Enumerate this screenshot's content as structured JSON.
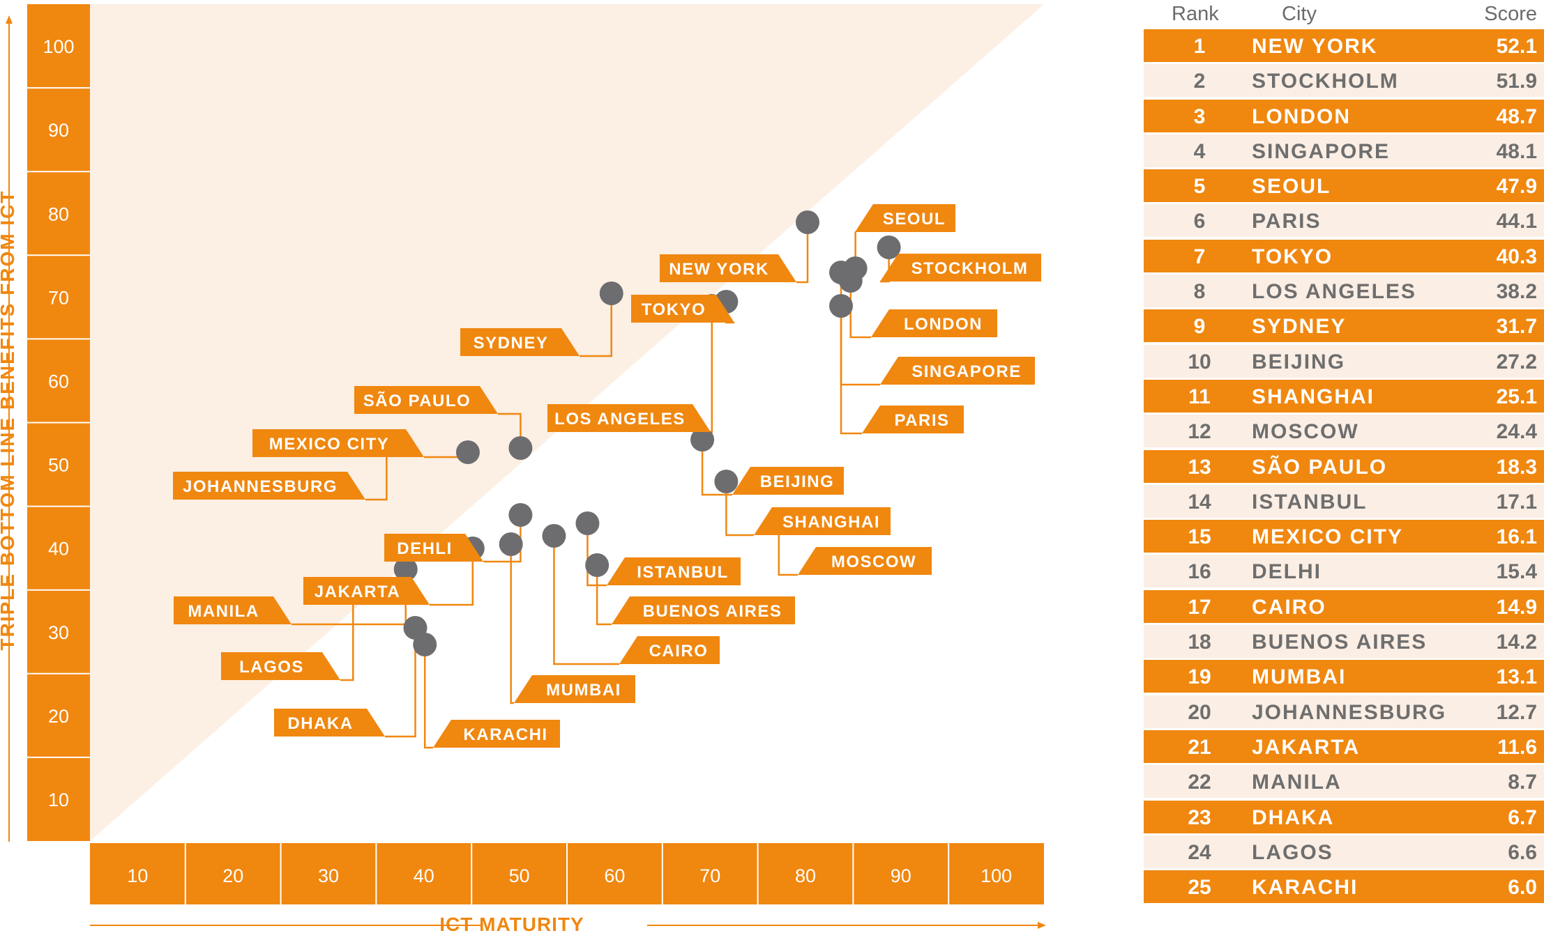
{
  "chart_data": {
    "type": "scatter",
    "xlabel": "ICT MATURITY",
    "ylabel": "TRIPLE BOTTOM LINE BENEFITS FROM ICT",
    "x_ticks": [
      10,
      20,
      30,
      40,
      50,
      60,
      70,
      80,
      90,
      100
    ],
    "y_ticks": [
      100,
      90,
      80,
      70,
      60,
      50,
      40,
      30,
      20,
      10
    ],
    "xlim": [
      5,
      105
    ],
    "ylim": [
      0,
      105
    ],
    "shaded_region": "above diagonal y = x",
    "colors": {
      "accent": "#f0870f",
      "point": "#6d6d6f",
      "shade": "#fcefe4"
    },
    "points": [
      {
        "city": "SEOUL",
        "x": 85.0,
        "y": 68.5
      },
      {
        "city": "NEW YORK",
        "x": 80.0,
        "y": 74.0
      },
      {
        "city": "STOCKHOLM",
        "x": 88.5,
        "y": 71.0
      },
      {
        "city": "LONDON",
        "x": 84.5,
        "y": 67.0
      },
      {
        "city": "SINGAPORE",
        "x": 83.5,
        "y": 68.0
      },
      {
        "city": "PARIS",
        "x": 83.5,
        "y": 64.0
      },
      {
        "city": "TOKYO",
        "x": 71.5,
        "y": 64.5
      },
      {
        "city": "LOS ANGELES",
        "x": 70.0,
        "y": 64.0
      },
      {
        "city": "SYDNEY",
        "x": 59.5,
        "y": 65.5
      },
      {
        "city": "SÃO PAULO",
        "x": 50.0,
        "y": 47.0
      },
      {
        "city": "MEXICO CITY",
        "x": 44.5,
        "y": 46.5
      },
      {
        "city": "JOHANNESBURG",
        "x": 36.0,
        "y": 47.5
      },
      {
        "city": "BEIJING",
        "x": 69.0,
        "y": 48.0
      },
      {
        "city": "SHANGHAI",
        "x": 71.5,
        "y": 43.0
      },
      {
        "city": "MOSCOW",
        "x": 77.0,
        "y": 38.5
      },
      {
        "city": "DEHLI",
        "x": 50.0,
        "y": 39.0
      },
      {
        "city": "ISTANBUL",
        "x": 57.0,
        "y": 38.0
      },
      {
        "city": "JAKARTA",
        "x": 45.0,
        "y": 35.0
      },
      {
        "city": "MANILA",
        "x": 38.0,
        "y": 32.5
      },
      {
        "city": "BUENOS AIRES",
        "x": 58.0,
        "y": 33.0
      },
      {
        "city": "CAIRO",
        "x": 53.5,
        "y": 36.5
      },
      {
        "city": "MUMBAI",
        "x": 49.0,
        "y": 35.5
      },
      {
        "city": "LAGOS",
        "x": 32.5,
        "y": 30.0
      },
      {
        "city": "DHAKA",
        "x": 39.0,
        "y": 25.5
      },
      {
        "city": "KARACHI",
        "x": 40.0,
        "y": 23.5
      }
    ]
  },
  "table": {
    "headers": {
      "rank": "Rank",
      "city": "City",
      "score": "Score"
    },
    "rows": [
      {
        "rank": "1",
        "city": "NEW YORK",
        "score": "52.1"
      },
      {
        "rank": "2",
        "city": "STOCKHOLM",
        "score": "51.9"
      },
      {
        "rank": "3",
        "city": "LONDON",
        "score": "48.7"
      },
      {
        "rank": "4",
        "city": "SINGAPORE",
        "score": "48.1"
      },
      {
        "rank": "5",
        "city": "SEOUL",
        "score": "47.9"
      },
      {
        "rank": "6",
        "city": "PARIS",
        "score": "44.1"
      },
      {
        "rank": "7",
        "city": "TOKYO",
        "score": "40.3"
      },
      {
        "rank": "8",
        "city": "LOS ANGELES",
        "score": "38.2"
      },
      {
        "rank": "9",
        "city": "SYDNEY",
        "score": "31.7"
      },
      {
        "rank": "10",
        "city": "BEIJING",
        "score": "27.2"
      },
      {
        "rank": "11",
        "city": "SHANGHAI",
        "score": "25.1"
      },
      {
        "rank": "12",
        "city": "MOSCOW",
        "score": "24.4"
      },
      {
        "rank": "13",
        "city": "SÃO PAULO",
        "score": "18.3"
      },
      {
        "rank": "14",
        "city": "ISTANBUL",
        "score": "17.1"
      },
      {
        "rank": "15",
        "city": "MEXICO CITY",
        "score": "16.1"
      },
      {
        "rank": "16",
        "city": "DELHI",
        "score": "15.4"
      },
      {
        "rank": "17",
        "city": "CAIRO",
        "score": "14.9"
      },
      {
        "rank": "18",
        "city": "BUENOS AIRES",
        "score": "14.2"
      },
      {
        "rank": "19",
        "city": "MUMBAI",
        "score": "13.1"
      },
      {
        "rank": "20",
        "city": "JOHANNESBURG",
        "score": "12.7"
      },
      {
        "rank": "21",
        "city": "JAKARTA",
        "score": "11.6"
      },
      {
        "rank": "22",
        "city": "MANILA",
        "score": "8.7"
      },
      {
        "rank": "23",
        "city": "DHAKA",
        "score": "6.7"
      },
      {
        "rank": "24",
        "city": "LAGOS",
        "score": "6.6"
      },
      {
        "rank": "25",
        "city": "KARACHI",
        "score": "6.0"
      }
    ]
  }
}
